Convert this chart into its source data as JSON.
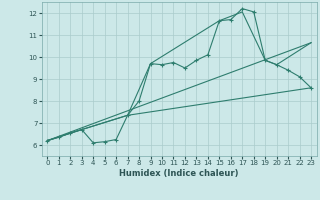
{
  "xlabel": "Humidex (Indice chaleur)",
  "bg_color": "#cce8e8",
  "grid_color": "#aacccc",
  "line_color": "#2e7d6e",
  "xlim": [
    -0.5,
    23.5
  ],
  "ylim": [
    5.5,
    12.5
  ],
  "xticks": [
    0,
    1,
    2,
    3,
    4,
    5,
    6,
    7,
    8,
    9,
    10,
    11,
    12,
    13,
    14,
    15,
    16,
    17,
    18,
    19,
    20,
    21,
    22,
    23
  ],
  "yticks": [
    6,
    7,
    8,
    9,
    10,
    11,
    12
  ],
  "line1_x": [
    0,
    1,
    2,
    3,
    4,
    5,
    6,
    7,
    8,
    9,
    10,
    11,
    12,
    13,
    14,
    15,
    16,
    17,
    18,
    19,
    20,
    21,
    22,
    23
  ],
  "line1_y": [
    6.2,
    6.35,
    6.55,
    6.7,
    6.1,
    6.15,
    6.25,
    7.35,
    8.0,
    9.7,
    9.65,
    9.75,
    9.5,
    9.85,
    10.1,
    11.65,
    11.7,
    12.2,
    12.05,
    9.85,
    9.65,
    9.4,
    9.1,
    8.6
  ],
  "line2_x": [
    0,
    3,
    7,
    23
  ],
  "line2_y": [
    6.2,
    6.7,
    7.35,
    8.6
  ],
  "line3_x": [
    0,
    3,
    7,
    9,
    15,
    17,
    19,
    20,
    23
  ],
  "line3_y": [
    6.2,
    6.7,
    7.35,
    9.7,
    11.65,
    12.05,
    9.85,
    9.65,
    10.65
  ],
  "line4_x": [
    0,
    23
  ],
  "line4_y": [
    6.2,
    10.65
  ]
}
